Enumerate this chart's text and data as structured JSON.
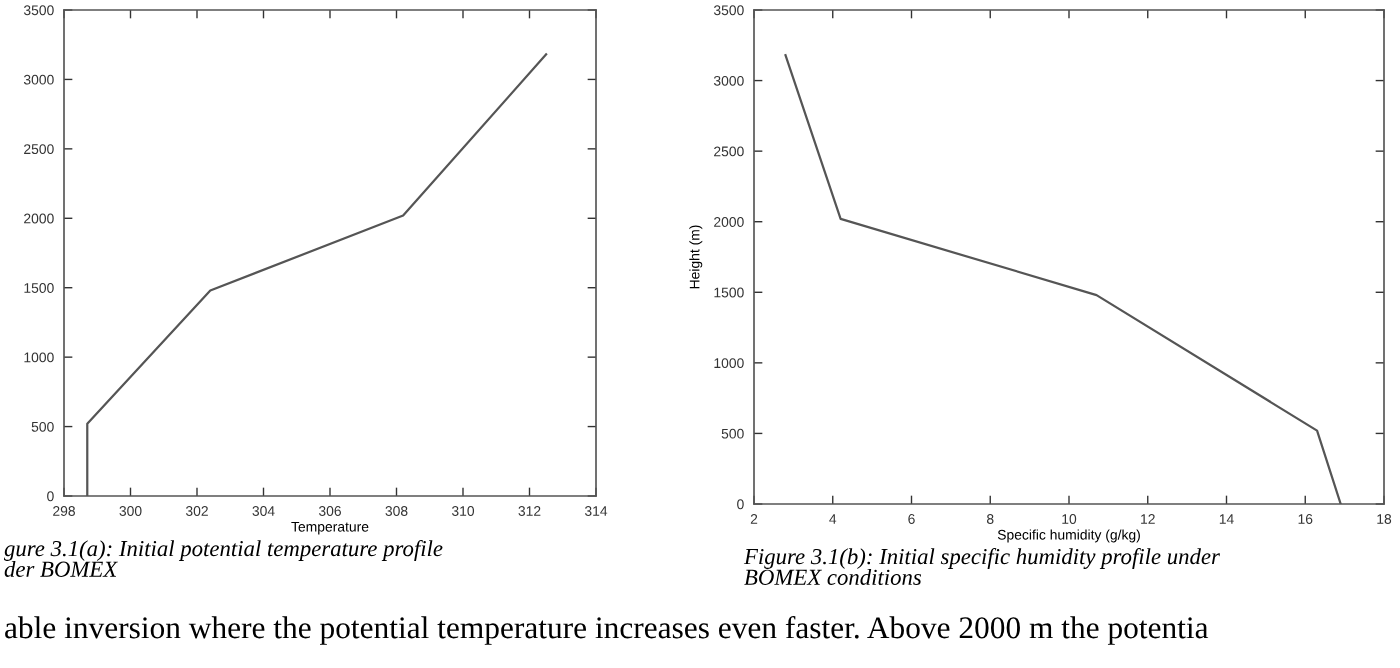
{
  "chart_data": [
    {
      "type": "line",
      "xlabel": "Temperature",
      "x": [
        298.7,
        298.7,
        302.4,
        308.2,
        312.5
      ],
      "series": [
        {
          "color": "#555555",
          "values": [
            0,
            520,
            1480,
            2020,
            3180
          ]
        }
      ],
      "xlim": [
        298,
        314
      ],
      "xticks": [
        298,
        300,
        302,
        304,
        306,
        308,
        310,
        312,
        314
      ],
      "ylim": [
        0,
        3500
      ],
      "yticks": [
        0,
        500,
        1000,
        1500,
        2000,
        2500,
        3000,
        3500
      ],
      "grid": false,
      "legend": false,
      "marker": "none",
      "line_style": "solid",
      "annotations": [
        "gure 3.1(a): Initial potential temperature profile\nder BOMEX",
        "able inversion where the potential temperature increases even faster. Above 2000 m the potentia"
      ]
    },
    {
      "type": "line",
      "xlabel": "Specific humidity (g/kg)",
      "ylabel": "Height (m)",
      "x": [
        16.9,
        16.3,
        10.7,
        4.2,
        2.8
      ],
      "series": [
        {
          "color": "#555555",
          "values": [
            0,
            520,
            1480,
            2020,
            3180
          ]
        }
      ],
      "xlim": [
        2,
        18
      ],
      "xticks": [
        2,
        4,
        6,
        8,
        10,
        12,
        14,
        16,
        18
      ],
      "ylim": [
        0,
        3500
      ],
      "yticks": [
        0,
        500,
        1000,
        1500,
        2000,
        2500,
        3000,
        3500
      ],
      "grid": false,
      "legend": false,
      "marker": "none",
      "line_style": "solid",
      "annotations": [
        "Figure 3.1(b): Initial specific humidity profile under\nBOMEX conditions"
      ]
    }
  ]
}
